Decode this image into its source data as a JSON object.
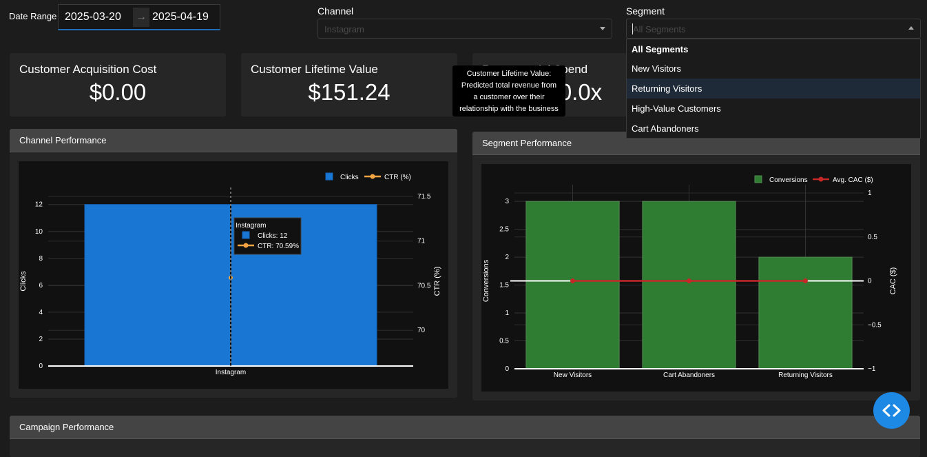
{
  "filters": {
    "date_range_label": "Date Range",
    "start_date": "2025-03-20",
    "end_date": "2025-04-19",
    "arrow": "→",
    "channel_label": "Channel",
    "channel_placeholder": "Instagram",
    "segment_label": "Segment",
    "segment_placeholder": "All Segments",
    "segment_options": [
      "All Segments",
      "New Visitors",
      "Returning Visitors",
      "High-Value Customers",
      "Cart Abandoners"
    ]
  },
  "kpis": [
    {
      "title": "Customer Acquisition Cost",
      "value": "$0.00"
    },
    {
      "title": "Customer Lifetime Value",
      "value": "$151.24"
    },
    {
      "title": "Return on Ad Spend",
      "value": "0.0x"
    }
  ],
  "tooltip": {
    "lines": [
      "Customer Lifetime Value:",
      "Predicted total revenue from",
      "a customer over their",
      "relationship with the business"
    ]
  },
  "panels": {
    "channel": "Channel Performance",
    "segment": "Segment Performance",
    "campaign": "Campaign Performance"
  },
  "colors": {
    "clicks_bar": "#1976d2",
    "ctr_line": "#f4a442",
    "conversions_bar": "#2e7d32",
    "cac_line": "#c62828",
    "accent": "#1e88e5"
  },
  "chart_data": [
    {
      "type": "bar",
      "categories": [
        "Instagram"
      ],
      "series": [
        {
          "name": "Clicks",
          "values": [
            12
          ],
          "axis": "left"
        },
        {
          "name": "CTR (%)",
          "values": [
            70.59
          ],
          "axis": "right",
          "type": "line"
        }
      ],
      "xlabel": "",
      "ylabel": "Clicks",
      "y2label": "CTR (%)",
      "ylim": [
        0,
        12.6
      ],
      "y2lim": [
        69.6,
        71.5
      ],
      "yticks": [
        "0",
        "2",
        "4",
        "6",
        "8",
        "10",
        "12"
      ],
      "y2ticks": [
        "70",
        "70.5",
        "71",
        "71.5"
      ],
      "legend": "top-right",
      "hover": {
        "title": "Instagram",
        "lines": [
          "Clicks: 12",
          "CTR: 70.59%"
        ]
      }
    },
    {
      "type": "bar",
      "categories": [
        "New Visitors",
        "Cart Abandoners",
        "Returning Visitors"
      ],
      "series": [
        {
          "name": "Conversions",
          "values": [
            3,
            3,
            2
          ],
          "axis": "left"
        },
        {
          "name": "Avg. CAC ($)",
          "values": [
            0,
            0,
            0
          ],
          "axis": "right",
          "type": "line"
        }
      ],
      "xlabel": "",
      "ylabel": "Conversions",
      "y2label": "CAC ($)",
      "ylim": [
        0,
        3.15
      ],
      "y2lim": [
        -1,
        1
      ],
      "yticks": [
        "0",
        "0.5",
        "1",
        "1.5",
        "2",
        "2.5",
        "3"
      ],
      "y2ticks": [
        "−1",
        "−0.5",
        "0",
        "0.5",
        "1"
      ],
      "legend": "top-right"
    }
  ]
}
